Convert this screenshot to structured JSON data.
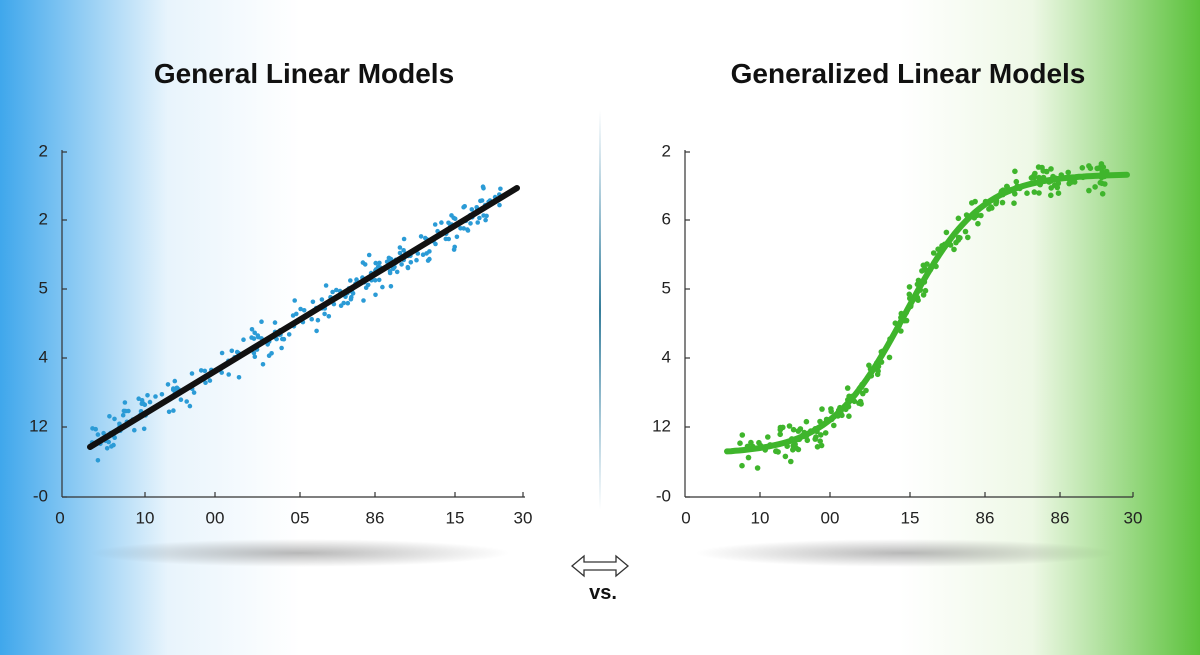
{
  "left": {
    "title": "General Linear Models",
    "y_labels": [
      "2",
      "2",
      "5",
      "4",
      "12",
      "-0"
    ],
    "x_labels": [
      "0",
      "10",
      "00",
      "05",
      "86",
      "15",
      "30"
    ]
  },
  "right": {
    "title": "Generalized Linear Models",
    "y_labels": [
      "2",
      "6",
      "5",
      "4",
      "12",
      "-0"
    ],
    "x_labels": [
      "0",
      "10",
      "00",
      "15",
      "86",
      "86",
      "30"
    ]
  },
  "separator": "vs."
}
